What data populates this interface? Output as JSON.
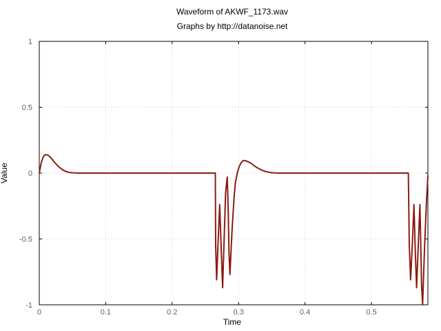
{
  "chart_data": {
    "type": "line",
    "title": "Waveform of AKWF_1173.wav",
    "subtitle": "Graphs by http://datanoise.net",
    "xlabel": "Time",
    "ylabel": "Value",
    "xlim": [
      0,
      0.585
    ],
    "ylim": [
      -1,
      1
    ],
    "xticks": [
      {
        "value": 0,
        "label": "0"
      },
      {
        "value": 0.1,
        "label": "0.1"
      },
      {
        "value": 0.2,
        "label": "0.2"
      },
      {
        "value": 0.3,
        "label": "0.3"
      },
      {
        "value": 0.4,
        "label": "0.4"
      },
      {
        "value": 0.5,
        "label": "0.5"
      }
    ],
    "yticks": [
      {
        "value": 1,
        "label": "1"
      },
      {
        "value": 0.5,
        "label": "0.5"
      },
      {
        "value": 0,
        "label": "0"
      },
      {
        "value": -0.5,
        "label": "-0.5"
      },
      {
        "value": -1,
        "label": "-1"
      }
    ],
    "grid": true,
    "line_color": "#8b1a10",
    "series": [
      {
        "x": [
          0,
          0.003,
          0.006,
          0.009,
          0.012,
          0.016,
          0.02,
          0.025,
          0.03,
          0.035,
          0.04,
          0.045,
          0.05,
          0.055,
          0.06,
          0.065,
          0.07,
          0.1,
          0.2,
          0.265,
          0.2655,
          0.267,
          0.269,
          0.2715,
          0.274,
          0.276,
          0.278,
          0.2805,
          0.283,
          0.2845,
          0.2855,
          0.287,
          0.29,
          0.293,
          0.295,
          0.298,
          0.301,
          0.304,
          0.307,
          0.31,
          0.315,
          0.32,
          0.325,
          0.33,
          0.335,
          0.34,
          0.345,
          0.35,
          0.355,
          0.36,
          0.4,
          0.5,
          0.555,
          0.5555,
          0.557,
          0.559,
          0.5615,
          0.564,
          0.566,
          0.568,
          0.5705,
          0.573,
          0.5745,
          0.5755,
          0.577,
          0.58,
          0.583,
          0.585
        ],
        "y": [
          0,
          0.08,
          0.125,
          0.14,
          0.138,
          0.125,
          0.1,
          0.07,
          0.045,
          0.025,
          0.012,
          0.005,
          0.002,
          0.001,
          0,
          0,
          0,
          0,
          0,
          0,
          -0.55,
          -0.81,
          -0.55,
          -0.24,
          -0.6,
          -0.87,
          -0.55,
          -0.15,
          -0.03,
          -0.3,
          -0.6,
          -0.77,
          -0.45,
          -0.2,
          -0.08,
          0,
          0.05,
          0.08,
          0.095,
          0.095,
          0.085,
          0.07,
          0.05,
          0.035,
          0.022,
          0.013,
          0.007,
          0.003,
          0.001,
          0,
          0,
          0,
          0,
          0,
          -0.55,
          -0.81,
          -0.55,
          -0.24,
          -0.6,
          -0.87,
          -0.55,
          -0.24,
          -0.6,
          -0.85,
          -1.0,
          -0.55,
          -0.2,
          -0.02
        ]
      }
    ]
  }
}
